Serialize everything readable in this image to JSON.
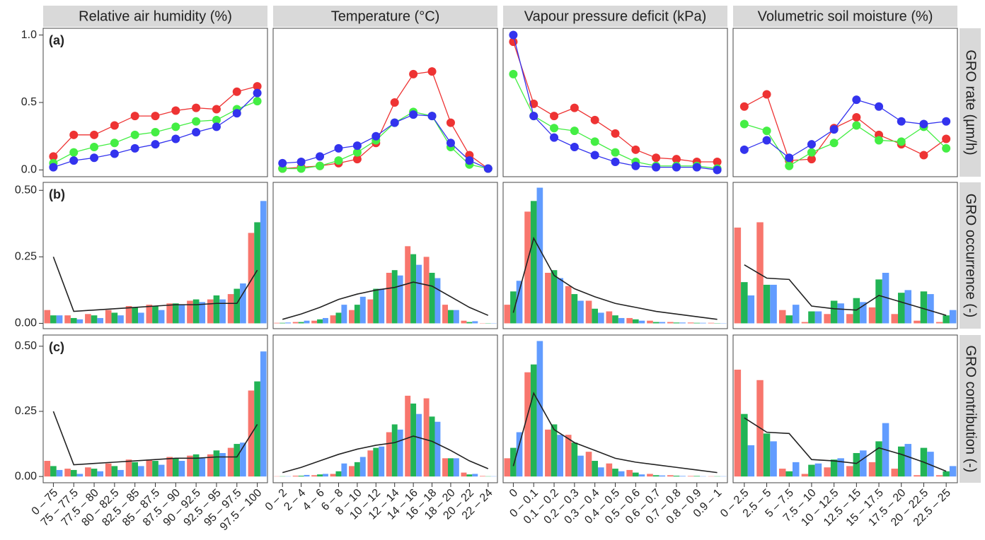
{
  "chart_data": {
    "type": "facet-grid",
    "columns": [
      {
        "title": "Relative air humidity (%)",
        "categories": [
          "0 – 75",
          "75 – 77.5",
          "77.5 – 80",
          "80 – 82.5",
          "82.5 – 85",
          "85 – 87.5",
          "87.5 – 90",
          "90 – 92.5",
          "92.5 – 95",
          "95 – 97.5",
          "97.5 – 100"
        ]
      },
      {
        "title": "Temperature (°C)",
        "categories": [
          "0 – 2",
          "2 – 4",
          "4 – 6",
          "6 – 8",
          "8 – 10",
          "10 – 12",
          "12 – 14",
          "14 – 16",
          "16 – 18",
          "18 – 20",
          "20 – 22",
          "22 – 24"
        ]
      },
      {
        "title": "Vapour pressure deficit (kPa)",
        "categories": [
          "0",
          "0 – 0.1",
          "0.1 – 0.2",
          "0.2 – 0.3",
          "0.3 – 0.4",
          "0.4 – 0.5",
          "0.5 – 0.6",
          "0.6 – 0.7",
          "0.7 – 0.8",
          "0.8 – 0.9",
          "0.9 – 1"
        ]
      },
      {
        "title": "Volumetric soil moisture (%)",
        "categories": [
          "0 – 2.5",
          "2.5 – 5",
          "5 – 7.5",
          "7.5 – 10",
          "10 – 12.5",
          "12.5 – 15",
          "15 – 17.5",
          "17.5 – 20",
          "20 – 22.5",
          "22.5 – 25"
        ]
      }
    ],
    "rows": [
      {
        "label": "(a)",
        "ylabel": "GRO rate (µm/h)",
        "type": "line",
        "ylim": [
          -0.05,
          1.05
        ],
        "yticks": [
          {
            "value": 0,
            "label": "0.0"
          },
          {
            "value": 0.5,
            "label": "0.5"
          },
          {
            "value": 1,
            "label": "1.0"
          }
        ]
      },
      {
        "label": "(b)",
        "ylabel": "GRO occurrence (-)",
        "type": "bar",
        "ylim": [
          -0.02,
          0.53
        ],
        "yticks": [
          {
            "value": 0,
            "label": "0.00"
          },
          {
            "value": 0.25,
            "label": "0.25"
          },
          {
            "value": 0.5,
            "label": "0.50"
          }
        ]
      },
      {
        "label": "(c)",
        "ylabel": "GRO contribution (-)",
        "type": "bar",
        "ylim": [
          -0.024,
          0.543
        ],
        "yticks": [
          {
            "value": 0,
            "label": "0.00"
          },
          {
            "value": 0.25,
            "label": "0.25"
          },
          {
            "value": 0.5,
            "label": "0.50"
          }
        ]
      }
    ],
    "panels": [
      [
        {
          "series": [
            {
              "color": "#ee3333",
              "values": [
                0.1,
                0.26,
                0.26,
                0.33,
                0.4,
                0.4,
                0.44,
                0.46,
                0.45,
                0.58,
                0.62
              ]
            },
            {
              "color": "#44ee44",
              "values": [
                0.05,
                0.13,
                0.17,
                0.2,
                0.26,
                0.28,
                0.32,
                0.36,
                0.37,
                0.45,
                0.51
              ]
            },
            {
              "color": "#3333ee",
              "values": [
                0.02,
                0.07,
                0.09,
                0.12,
                0.16,
                0.19,
                0.23,
                0.28,
                0.32,
                0.42,
                0.57
              ]
            }
          ]
        },
        {
          "series": [
            {
              "color": "#ee3333",
              "values": [
                0.01,
                0.02,
                0.03,
                0.05,
                0.08,
                0.2,
                0.5,
                0.71,
                0.73,
                0.35,
                0.11,
                0.01
              ]
            },
            {
              "color": "#44ee44",
              "values": [
                0.01,
                0.01,
                0.03,
                0.07,
                0.13,
                0.22,
                0.35,
                0.43,
                0.4,
                0.17,
                0.04,
                0.01
              ]
            },
            {
              "color": "#3333ee",
              "values": [
                0.05,
                0.06,
                0.1,
                0.16,
                0.18,
                0.25,
                0.35,
                0.41,
                0.4,
                0.2,
                0.07,
                0.01
              ]
            }
          ]
        },
        {
          "series": [
            {
              "color": "#ee3333",
              "values": [
                0.95,
                0.49,
                0.4,
                0.46,
                0.37,
                0.27,
                0.15,
                0.09,
                0.08,
                0.06,
                0.06
              ]
            },
            {
              "color": "#44ee44",
              "values": [
                0.71,
                0.4,
                0.31,
                0.29,
                0.21,
                0.13,
                0.06,
                0.03,
                0.03,
                0.03,
                0.01
              ]
            },
            {
              "color": "#3333ee",
              "values": [
                1.0,
                0.4,
                0.24,
                0.17,
                0.11,
                0.06,
                0.03,
                0.02,
                0.02,
                0.02,
                0.0
              ]
            }
          ]
        },
        {
          "series": [
            {
              "color": "#ee3333",
              "values": [
                0.47,
                0.56,
                0.07,
                0.08,
                0.31,
                0.39,
                0.26,
                0.19,
                0.11,
                0.23
              ]
            },
            {
              "color": "#44ee44",
              "values": [
                0.34,
                0.29,
                0.03,
                0.13,
                0.2,
                0.33,
                0.22,
                0.21,
                0.32,
                0.16
              ]
            },
            {
              "color": "#3333ee",
              "values": [
                0.15,
                0.22,
                0.09,
                0.19,
                0.3,
                0.52,
                0.47,
                0.36,
                0.34,
                0.36
              ]
            }
          ]
        }
      ],
      [
        {
          "series": [
            {
              "color": "#f8766d",
              "values": [
                0.05,
                0.03,
                0.035,
                0.05,
                0.065,
                0.07,
                0.075,
                0.085,
                0.09,
                0.11,
                0.34
              ]
            },
            {
              "color": "#22b455",
              "values": [
                0.03,
                0.02,
                0.03,
                0.04,
                0.06,
                0.065,
                0.075,
                0.09,
                0.105,
                0.13,
                0.38
              ]
            },
            {
              "color": "#619cff",
              "values": [
                0.03,
                0.015,
                0.02,
                0.03,
                0.04,
                0.05,
                0.07,
                0.08,
                0.09,
                0.15,
                0.46
              ]
            },
            {
              "color": "#222222",
              "type": "line",
              "values": [
                0.25,
                0.045,
                0.05,
                0.055,
                0.06,
                0.065,
                0.07,
                0.07,
                0.075,
                0.075,
                0.2
              ]
            }
          ]
        },
        {
          "series": [
            {
              "color": "#f8766d",
              "values": [
                0.002,
                0.005,
                0.01,
                0.03,
                0.05,
                0.09,
                0.19,
                0.29,
                0.25,
                0.07,
                0.01,
                0.001
              ]
            },
            {
              "color": "#22b455",
              "values": [
                0.002,
                0.005,
                0.015,
                0.04,
                0.07,
                0.13,
                0.2,
                0.26,
                0.19,
                0.05,
                0.005,
                0.001
              ]
            },
            {
              "color": "#619cff",
              "values": [
                0.003,
                0.01,
                0.02,
                0.07,
                0.1,
                0.13,
                0.18,
                0.22,
                0.17,
                0.05,
                0.008,
                0.001
              ]
            },
            {
              "color": "#222222",
              "type": "line",
              "values": [
                0.015,
                0.035,
                0.06,
                0.09,
                0.11,
                0.125,
                0.135,
                0.155,
                0.14,
                0.1,
                0.06,
                0.03
              ]
            }
          ]
        },
        {
          "series": [
            {
              "color": "#f8766d",
              "values": [
                0.07,
                0.42,
                0.19,
                0.14,
                0.085,
                0.045,
                0.02,
                0.01,
                0.005,
                0.003,
                0.002
              ]
            },
            {
              "color": "#22b455",
              "values": [
                0.12,
                0.46,
                0.2,
                0.11,
                0.055,
                0.03,
                0.015,
                0.005,
                0.003,
                0.002,
                0.001
              ]
            },
            {
              "color": "#619cff",
              "values": [
                0.16,
                0.51,
                0.17,
                0.085,
                0.04,
                0.02,
                0.01,
                0.005,
                0.003,
                0.002,
                0.001
              ]
            },
            {
              "color": "#222222",
              "type": "line",
              "values": [
                0.04,
                0.32,
                0.18,
                0.13,
                0.1,
                0.075,
                0.06,
                0.045,
                0.035,
                0.025,
                0.015
              ]
            }
          ]
        },
        {
          "series": [
            {
              "color": "#f8766d",
              "values": [
                0.36,
                0.38,
                0.05,
                0.005,
                0.035,
                0.035,
                0.06,
                0.035,
                0.01,
                0.005
              ]
            },
            {
              "color": "#22b455",
              "values": [
                0.155,
                0.145,
                0.03,
                0.045,
                0.085,
                0.095,
                0.165,
                0.115,
                0.12,
                0.03
              ]
            },
            {
              "color": "#619cff",
              "values": [
                0.105,
                0.145,
                0.07,
                0.045,
                0.075,
                0.08,
                0.19,
                0.125,
                0.11,
                0.05
              ]
            },
            {
              "color": "#222222",
              "type": "line",
              "values": [
                0.22,
                0.17,
                0.165,
                0.065,
                0.055,
                0.05,
                0.105,
                0.08,
                0.055,
                0.03
              ]
            }
          ]
        }
      ],
      [
        {
          "series": [
            {
              "color": "#f8766d",
              "values": [
                0.06,
                0.03,
                0.035,
                0.05,
                0.065,
                0.065,
                0.075,
                0.08,
                0.085,
                0.11,
                0.33
              ]
            },
            {
              "color": "#22b455",
              "values": [
                0.04,
                0.025,
                0.03,
                0.04,
                0.055,
                0.06,
                0.07,
                0.085,
                0.1,
                0.125,
                0.365
              ]
            },
            {
              "color": "#619cff",
              "values": [
                0.025,
                0.01,
                0.02,
                0.025,
                0.04,
                0.045,
                0.06,
                0.07,
                0.09,
                0.13,
                0.48
              ]
            },
            {
              "color": "#222222",
              "type": "line",
              "values": [
                0.25,
                0.045,
                0.05,
                0.055,
                0.06,
                0.065,
                0.07,
                0.07,
                0.075,
                0.075,
                0.2
              ]
            }
          ]
        },
        {
          "series": [
            {
              "color": "#f8766d",
              "values": [
                0.001,
                0.003,
                0.005,
                0.01,
                0.04,
                0.1,
                0.17,
                0.31,
                0.3,
                0.07,
                0.015,
                0.002
              ]
            },
            {
              "color": "#22b455",
              "values": [
                0.001,
                0.003,
                0.008,
                0.02,
                0.055,
                0.11,
                0.2,
                0.28,
                0.23,
                0.07,
                0.008,
                0.001
              ]
            },
            {
              "color": "#619cff",
              "values": [
                0.001,
                0.006,
                0.01,
                0.05,
                0.075,
                0.115,
                0.18,
                0.24,
                0.21,
                0.07,
                0.01,
                0.001
              ]
            },
            {
              "color": "#222222",
              "type": "line",
              "values": [
                0.015,
                0.035,
                0.06,
                0.085,
                0.105,
                0.12,
                0.13,
                0.155,
                0.135,
                0.1,
                0.06,
                0.03
              ]
            }
          ]
        },
        {
          "series": [
            {
              "color": "#f8766d",
              "values": [
                0.07,
                0.4,
                0.18,
                0.16,
                0.095,
                0.05,
                0.025,
                0.01,
                0.005,
                0.002,
                0.001
              ]
            },
            {
              "color": "#22b455",
              "values": [
                0.11,
                0.43,
                0.2,
                0.13,
                0.06,
                0.03,
                0.015,
                0.005,
                0.003,
                0.002,
                0.001
              ]
            },
            {
              "color": "#619cff",
              "values": [
                0.17,
                0.52,
                0.16,
                0.08,
                0.035,
                0.02,
                0.008,
                0.004,
                0.002,
                0.001,
                0.001
              ]
            },
            {
              "color": "#222222",
              "type": "line",
              "values": [
                0.04,
                0.32,
                0.18,
                0.13,
                0.1,
                0.07,
                0.055,
                0.045,
                0.035,
                0.025,
                0.015
              ]
            }
          ]
        },
        {
          "series": [
            {
              "color": "#f8766d",
              "values": [
                0.41,
                0.37,
                0.03,
                0.01,
                0.035,
                0.04,
                0.055,
                0.03,
                0.005,
                0.005
              ]
            },
            {
              "color": "#22b455",
              "values": [
                0.24,
                0.165,
                0.02,
                0.045,
                0.065,
                0.09,
                0.135,
                0.115,
                0.11,
                0.02
              ]
            },
            {
              "color": "#619cff",
              "values": [
                0.12,
                0.135,
                0.055,
                0.05,
                0.07,
                0.1,
                0.205,
                0.125,
                0.095,
                0.04
              ]
            },
            {
              "color": "#222222",
              "type": "line",
              "values": [
                0.225,
                0.17,
                0.165,
                0.065,
                0.06,
                0.05,
                0.11,
                0.085,
                0.055,
                0.02
              ]
            }
          ]
        }
      ]
    ]
  }
}
